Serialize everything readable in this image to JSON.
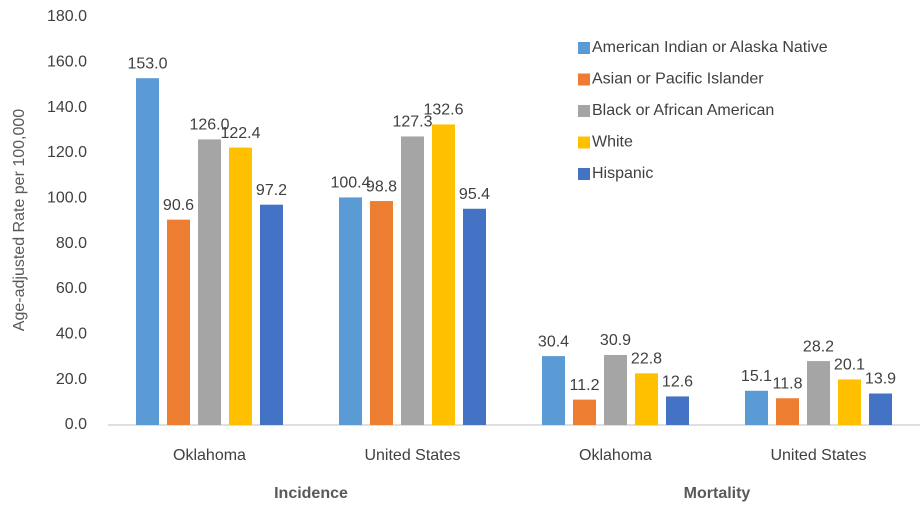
{
  "chart_data": {
    "type": "bar",
    "y_label": "Age-adjusted Rate per 100,000",
    "categories": [
      "Oklahoma",
      "United States",
      "Oklahoma",
      "United States"
    ],
    "groups": [
      "Incidence",
      "Mortality"
    ],
    "series": [
      {
        "name": "American Indian or Alaska Native",
        "color": "#5b9bd5",
        "values": [
          153.0,
          100.4,
          30.4,
          15.1
        ],
        "value_labels": [
          "153.0",
          "100.4",
          "30.4",
          "15.1"
        ]
      },
      {
        "name": "Asian or Pacific Islander",
        "color": "#ed7d31",
        "values": [
          90.6,
          98.8,
          11.2,
          11.8
        ],
        "value_labels": [
          "90.6",
          "98.8",
          "11.2",
          "11.8"
        ]
      },
      {
        "name": "Black or African American",
        "color": "#a5a5a5",
        "values": [
          126.0,
          127.3,
          30.9,
          28.2
        ],
        "value_labels": [
          "126.0",
          "127.3",
          "30.9",
          "28.2"
        ]
      },
      {
        "name": "White",
        "color": "#ffc000",
        "values": [
          122.4,
          132.6,
          22.8,
          20.1
        ],
        "value_labels": [
          "122.4",
          "132.6",
          "22.8",
          "20.1"
        ]
      },
      {
        "name": "Hispanic",
        "color": "#4472c4",
        "values": [
          97.2,
          95.4,
          12.6,
          13.9
        ],
        "value_labels": [
          "97.2",
          "95.4",
          "12.6",
          "13.9"
        ]
      }
    ],
    "ylim": [
      0,
      180
    ],
    "yticks": [
      {
        "value": 0,
        "label": "0.0"
      },
      {
        "value": 20,
        "label": "20.0"
      },
      {
        "value": 40,
        "label": "40.0"
      },
      {
        "value": 60,
        "label": "60.0"
      },
      {
        "value": 80,
        "label": "80.0"
      },
      {
        "value": 100,
        "label": "100.0"
      },
      {
        "value": 120,
        "label": "120.0"
      },
      {
        "value": 140,
        "label": "140.0"
      },
      {
        "value": 160,
        "label": "160.0"
      },
      {
        "value": 180,
        "label": "180.0"
      }
    ],
    "grid": false,
    "legend": "top-right"
  }
}
